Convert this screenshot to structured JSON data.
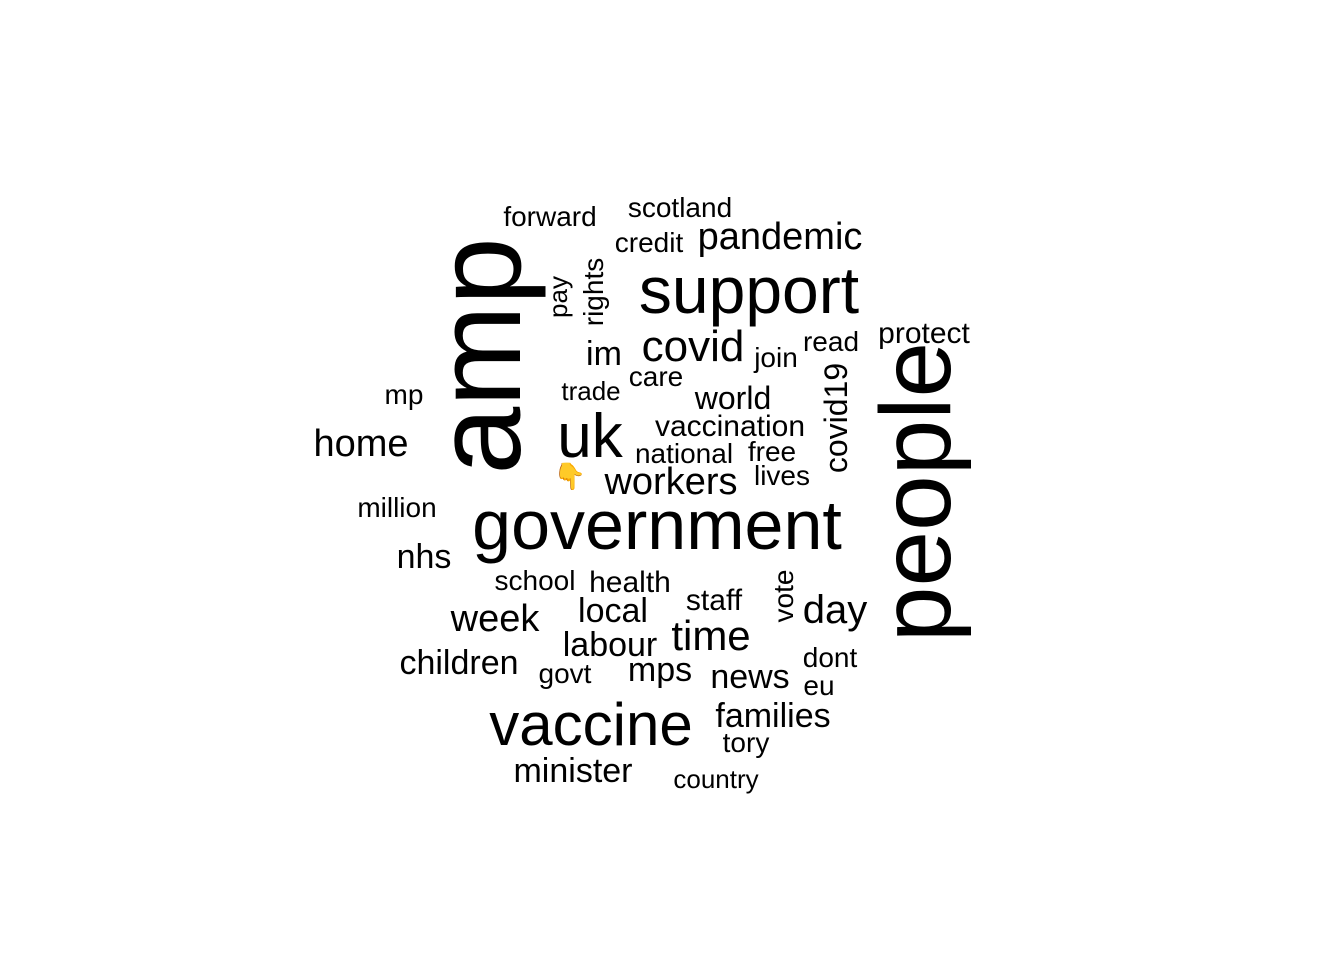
{
  "words": [
    {
      "id": "amp",
      "text": "amp"
    },
    {
      "id": "people",
      "text": "people"
    },
    {
      "id": "government",
      "text": "government"
    },
    {
      "id": "support",
      "text": "support"
    },
    {
      "id": "vaccine",
      "text": "vaccine"
    },
    {
      "id": "uk",
      "text": "uk"
    },
    {
      "id": "pandemic",
      "text": "pandemic"
    },
    {
      "id": "covid",
      "text": "covid"
    },
    {
      "id": "workers",
      "text": "workers"
    },
    {
      "id": "time",
      "text": "time"
    },
    {
      "id": "day",
      "text": "day"
    },
    {
      "id": "home",
      "text": "home"
    },
    {
      "id": "week",
      "text": "week"
    },
    {
      "id": "labour",
      "text": "labour"
    },
    {
      "id": "local",
      "text": "local"
    },
    {
      "id": "minister",
      "text": "minister"
    },
    {
      "id": "children",
      "text": "children"
    },
    {
      "id": "families",
      "text": "families"
    },
    {
      "id": "news",
      "text": "news"
    },
    {
      "id": "mps",
      "text": "mps"
    },
    {
      "id": "nhs",
      "text": "nhs"
    },
    {
      "id": "health",
      "text": "health"
    },
    {
      "id": "vaccination",
      "text": "vaccination"
    },
    {
      "id": "world",
      "text": "world"
    },
    {
      "id": "covid19",
      "text": "covid19"
    },
    {
      "id": "im",
      "text": "im"
    },
    {
      "id": "protect",
      "text": "protect"
    },
    {
      "id": "scotland",
      "text": "scotland"
    },
    {
      "id": "forward",
      "text": "forward"
    },
    {
      "id": "credit",
      "text": "credit"
    },
    {
      "id": "rights",
      "text": "rights"
    },
    {
      "id": "pay",
      "text": "pay"
    },
    {
      "id": "join",
      "text": "join"
    },
    {
      "id": "read",
      "text": "read"
    },
    {
      "id": "care",
      "text": "care"
    },
    {
      "id": "trade",
      "text": "trade"
    },
    {
      "id": "mp",
      "text": "mp"
    },
    {
      "id": "national",
      "text": "national"
    },
    {
      "id": "free",
      "text": "free"
    },
    {
      "id": "lives",
      "text": "lives"
    },
    {
      "id": "million",
      "text": "million"
    },
    {
      "id": "school",
      "text": "school"
    },
    {
      "id": "staff",
      "text": "staff"
    },
    {
      "id": "vote",
      "text": "vote"
    },
    {
      "id": "dont",
      "text": "dont"
    },
    {
      "id": "govt",
      "text": "govt"
    },
    {
      "id": "eu",
      "text": "eu"
    },
    {
      "id": "tory",
      "text": "tory"
    },
    {
      "id": "country",
      "text": "country"
    },
    {
      "id": "hand",
      "text": "👇"
    }
  ]
}
